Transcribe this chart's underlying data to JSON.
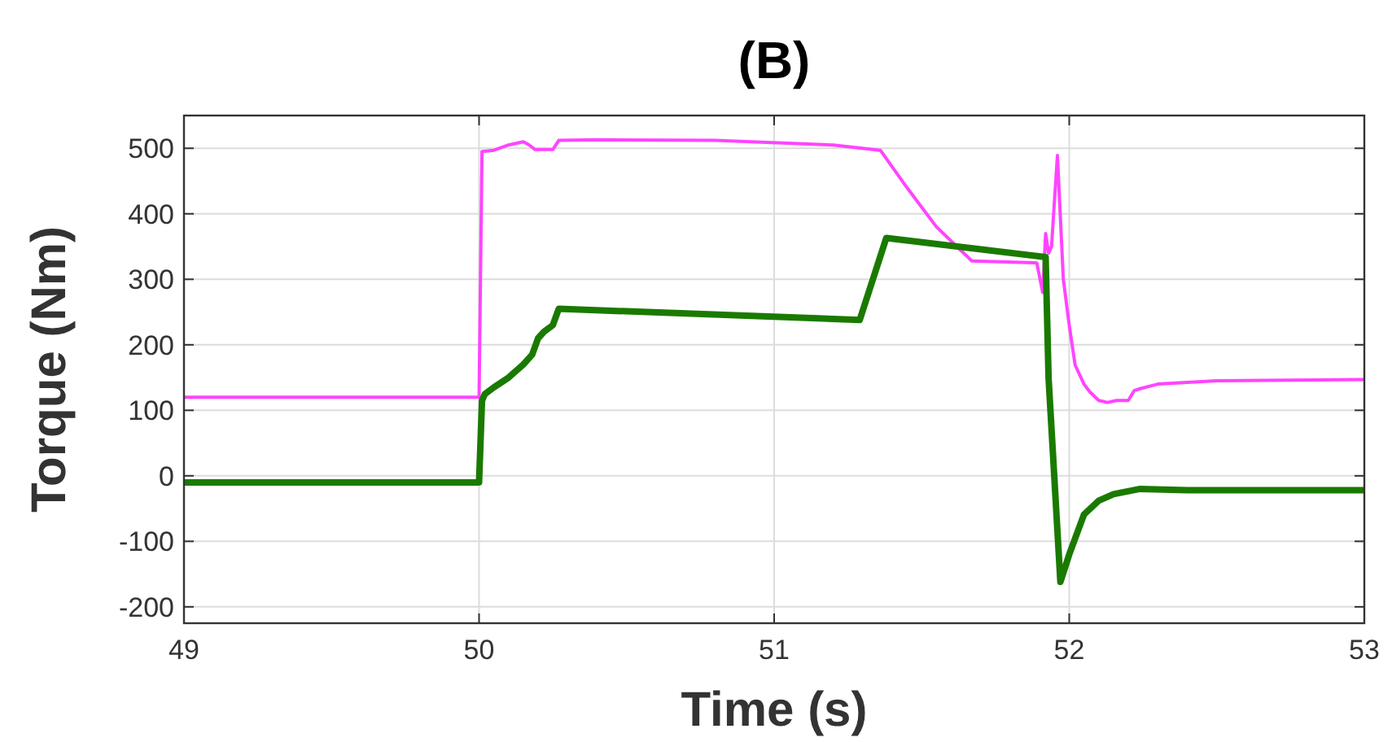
{
  "chart_data": {
    "type": "line",
    "title": "(B)",
    "xlabel": "Time (s)",
    "ylabel": "Torque (Nm)",
    "xlim": [
      49,
      53
    ],
    "xticks": [
      49,
      50,
      51,
      52,
      53
    ],
    "ylim": [
      -225,
      550
    ],
    "yticks": [
      -200,
      -100,
      0,
      100,
      200,
      300,
      400,
      500
    ],
    "grid": true,
    "marker": "none",
    "line_style": "solid",
    "series": [
      {
        "color": "#ff44ff",
        "x": [
          49,
          50,
          50.01,
          50.05,
          50.1,
          50.15,
          50.17,
          50.19,
          50.25,
          50.27,
          50.4,
          50.8,
          51.2,
          51.36,
          51.45,
          51.55,
          51.67,
          51.89,
          51.91,
          51.92,
          51.93,
          51.94,
          51.95,
          51.96,
          51.98,
          52,
          52.02,
          52.05,
          52.07,
          52.1,
          52.13,
          52.16,
          52.2,
          52.22,
          52.24,
          52.3,
          52.5,
          53
        ],
        "values": [
          120,
          120,
          495,
          497,
          505,
          510,
          505,
          498,
          498,
          512,
          513,
          512,
          505,
          497,
          440,
          380,
          328,
          325,
          280,
          370,
          340,
          350,
          420,
          489,
          300,
          230,
          169,
          140,
          128,
          115,
          112,
          115,
          115,
          130,
          133,
          140,
          145,
          147
        ]
      },
      {
        "color": "#1a7a00",
        "x": [
          49,
          50,
          50.01,
          50.02,
          50.05,
          50.1,
          50.15,
          50.18,
          50.2,
          50.22,
          50.25,
          50.27,
          51.29,
          51.38,
          51.92,
          51.93,
          51.97,
          52,
          52.05,
          52.1,
          52.15,
          52.24,
          52.4,
          53
        ],
        "values": [
          -10,
          -10,
          115,
          125,
          135,
          150,
          170,
          185,
          210,
          220,
          230,
          255,
          238,
          363,
          334,
          149,
          -162,
          -120,
          -59,
          -38,
          -28,
          -20,
          -22,
          -22
        ]
      }
    ]
  }
}
